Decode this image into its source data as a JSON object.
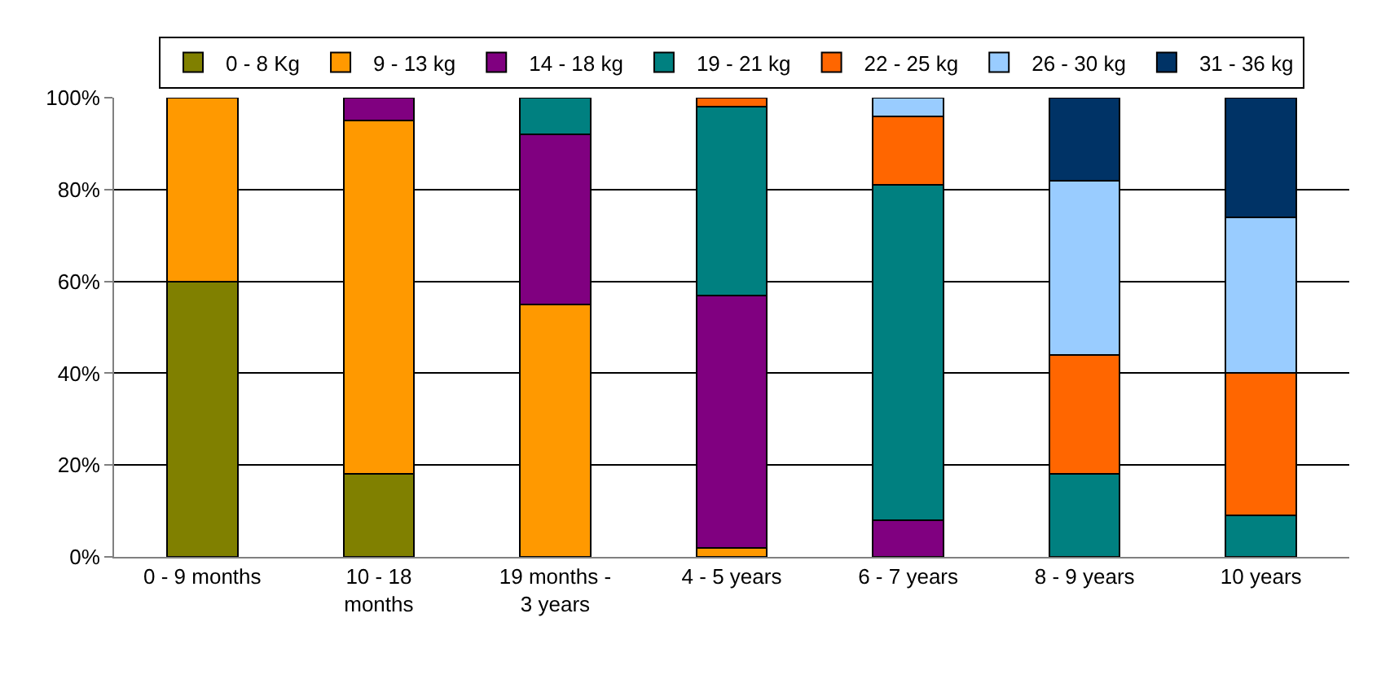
{
  "chart_data": {
    "type": "bar",
    "stacked": true,
    "categories": [
      "0 - 9 months",
      "10 - 18\nmonths",
      "19 months -\n3 years",
      "4 - 5 years",
      "6 - 7 years",
      "8 - 9 years",
      "10 years"
    ],
    "series": [
      {
        "name": "0 - 8 Kg",
        "color": "#808000",
        "values": [
          60,
          18,
          null,
          null,
          null,
          null,
          null
        ]
      },
      {
        "name": "9 - 13 kg",
        "color": "#ff9900",
        "values": [
          40,
          77,
          55,
          2,
          null,
          null,
          null
        ]
      },
      {
        "name": "14 - 18 kg",
        "color": "#800080",
        "values": [
          null,
          5,
          37,
          55,
          8,
          null,
          null
        ]
      },
      {
        "name": "19 - 21 kg",
        "color": "#008080",
        "values": [
          null,
          null,
          8,
          41,
          73,
          18,
          9
        ]
      },
      {
        "name": "22 - 25 kg",
        "color": "#ff6600",
        "values": [
          null,
          null,
          null,
          2,
          15,
          26,
          31
        ]
      },
      {
        "name": "26 - 30 kg",
        "color": "#99ccff",
        "values": [
          null,
          null,
          null,
          null,
          4,
          38,
          34
        ]
      },
      {
        "name": "31 - 36 kg",
        "color": "#003366",
        "values": [
          null,
          null,
          null,
          null,
          null,
          18,
          26
        ]
      }
    ],
    "ylim": [
      0,
      100
    ],
    "yticks": [
      {
        "value": 0,
        "label": "0%"
      },
      {
        "value": 20,
        "label": "20%"
      },
      {
        "value": 40,
        "label": "40%"
      },
      {
        "value": 60,
        "label": "60%"
      },
      {
        "value": 80,
        "label": "80%"
      },
      {
        "value": 100,
        "label": "100%"
      }
    ],
    "grid": "y",
    "legend": "top"
  }
}
